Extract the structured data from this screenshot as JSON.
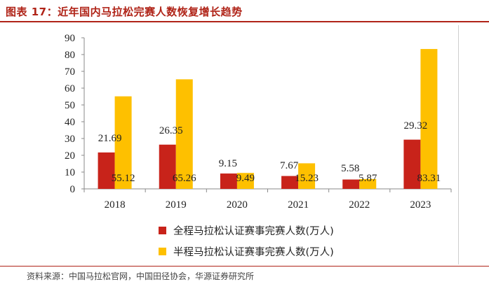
{
  "figure": {
    "title": "图表 17：近年国内马拉松完赛人数恢复增长趋势",
    "source": "资料来源：中国马拉松官网，中国田径协会，华源证券研究所"
  },
  "colors": {
    "brand": "#b02418",
    "series_full": "#c8231a",
    "series_half": "#fec000"
  },
  "chart_data": {
    "type": "bar",
    "title": "",
    "xlabel": "",
    "ylabel": "",
    "categories": [
      "2018",
      "2019",
      "2020",
      "2021",
      "2022",
      "2023"
    ],
    "series": [
      {
        "name": "全程马拉松认证赛事完赛人数(万人)",
        "values": [
          21.69,
          26.35,
          9.15,
          7.67,
          5.58,
          29.32
        ]
      },
      {
        "name": "半程马拉松认证赛事完赛人数(万人)",
        "values": [
          55.12,
          65.26,
          9.49,
          15.23,
          5.87,
          83.31
        ]
      }
    ],
    "data_labels": {
      "full": [
        "21.69",
        "26.35",
        "9.15",
        "7.67",
        "5.58",
        "29.32"
      ],
      "half": [
        "55.12",
        "65.26",
        "9.49",
        "15.23",
        "5.87",
        "83.31"
      ]
    },
    "ylim": [
      0,
      90
    ],
    "yticks": [
      "0",
      "10",
      "20",
      "30",
      "40",
      "50",
      "60",
      "70",
      "80",
      "90"
    ],
    "grid": false,
    "legend_position": "bottom"
  }
}
